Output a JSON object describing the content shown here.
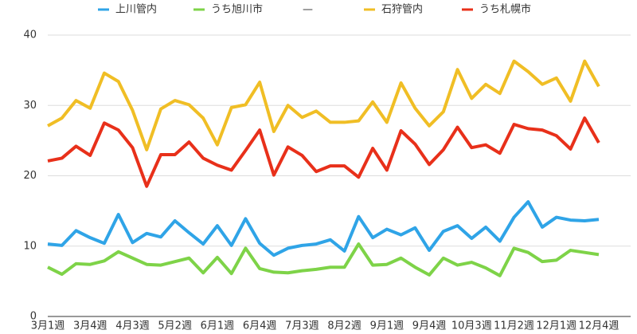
{
  "chart_data": {
    "type": "line",
    "categories": [
      "3月1週",
      null,
      null,
      "3月4週",
      null,
      null,
      "4月3週",
      null,
      null,
      "5月2週",
      null,
      null,
      "6月1週",
      null,
      null,
      "6月4週",
      null,
      null,
      "7月3週",
      null,
      null,
      "8月2週",
      null,
      null,
      "9月1週",
      null,
      null,
      "9月4週",
      null,
      null,
      "10月3週",
      null,
      null,
      "11月2週",
      null,
      null,
      "12月1週",
      null,
      null,
      "12月4週"
    ],
    "series": [
      {
        "name": "上川管内",
        "color": "#2fa4e7",
        "values": [
          10.3,
          10.1,
          12.2,
          11.2,
          10.4,
          14.5,
          10.5,
          11.8,
          11.3,
          13.6,
          11.9,
          10.3,
          12.9,
          10.1,
          13.9,
          10.4,
          8.7,
          9.7,
          10.1,
          10.3,
          10.9,
          9.3,
          14.2,
          11.2,
          12.4,
          11.6,
          12.6,
          9.4,
          12.1,
          12.9,
          11.1,
          12.7,
          10.7,
          14.1,
          16.3,
          12.7,
          14.1,
          13.7,
          13.6,
          13.8
        ]
      },
      {
        "name": "うち旭川市",
        "color": "#7ed348",
        "values": [
          7.0,
          6.0,
          7.5,
          7.4,
          7.9,
          9.2,
          8.3,
          7.4,
          7.3,
          7.8,
          8.3,
          6.2,
          8.4,
          6.1,
          9.7,
          6.8,
          6.3,
          6.2,
          6.5,
          6.7,
          7.0,
          7.0,
          10.3,
          7.3,
          7.4,
          8.3,
          7.0,
          5.9,
          8.3,
          7.3,
          7.7,
          6.9,
          5.8,
          9.7,
          9.1,
          7.8,
          8.0,
          9.4,
          9.1,
          8.8
        ]
      },
      {
        "name": "—",
        "color": null,
        "values": [
          null,
          null,
          null,
          null,
          null,
          null,
          null,
          null,
          null,
          null,
          null,
          null,
          null,
          null,
          null,
          null,
          null,
          null,
          null,
          null,
          null,
          null,
          null,
          null,
          null,
          null,
          null,
          null,
          null,
          null,
          null,
          null,
          null,
          null,
          null,
          null,
          null,
          null,
          null,
          null
        ]
      },
      {
        "name": "石狩管内",
        "color": "#f0be25",
        "values": [
          27.1,
          28.2,
          30.7,
          29.6,
          34.6,
          33.4,
          29.3,
          23.7,
          29.5,
          30.7,
          30.1,
          28.2,
          24.4,
          29.7,
          30.1,
          33.3,
          26.3,
          30.0,
          28.3,
          29.2,
          27.6,
          27.6,
          27.8,
          30.5,
          27.6,
          33.2,
          29.6,
          27.1,
          29.1,
          35.1,
          31.0,
          33.0,
          31.7,
          36.3,
          34.8,
          33.0,
          33.9,
          30.6,
          36.3,
          32.7
        ]
      },
      {
        "name": "うち札幌市",
        "color": "#e8301a",
        "values": [
          22.1,
          22.5,
          24.2,
          22.9,
          27.5,
          26.5,
          24.0,
          18.5,
          23.0,
          23.0,
          24.8,
          22.5,
          21.5,
          20.8,
          23.6,
          26.5,
          20.1,
          24.1,
          22.9,
          20.6,
          21.4,
          21.4,
          19.8,
          23.9,
          20.8,
          26.4,
          24.5,
          21.6,
          23.7,
          26.9,
          24.0,
          24.4,
          23.2,
          27.3,
          26.7,
          26.5,
          25.7,
          23.8,
          28.2,
          24.7
        ]
      }
    ],
    "ylim": [
      0,
      40
    ],
    "yticks": [
      0,
      10,
      20,
      30,
      40
    ],
    "grid": true,
    "legend": "top"
  }
}
